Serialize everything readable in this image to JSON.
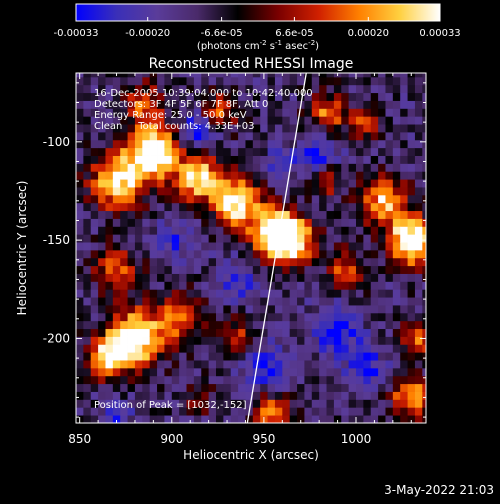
{
  "chart_data": {
    "type": "heatmap",
    "title": "Reconstructed RHESSI Image",
    "xlabel": "Heliocentric X (arcsec)",
    "ylabel": "Heliocentric Y (arcsec)",
    "xlim": [
      848,
      1038
    ],
    "ylim": [
      -243,
      -65
    ],
    "x_ticks": [
      "850",
      "900",
      "950",
      "1000"
    ],
    "x_tick_values": [
      850,
      900,
      950,
      1000
    ],
    "y_ticks": [
      "-100",
      "-150",
      "-200"
    ],
    "y_tick_values": [
      -100,
      -150,
      -200
    ],
    "colorbar": {
      "min": -0.00033,
      "max": 0.00033,
      "tick_labels": [
        "-0.00033",
        "-0.00020",
        "-6.6e-05",
        "6.6e-05",
        "0.00020",
        "0.00033"
      ],
      "tick_values": [
        -0.00033,
        -0.0002,
        -6.6e-05,
        6.6e-05,
        0.0002,
        0.00033
      ],
      "units_text": "(photons cm",
      "units_sup1": "-2",
      "units_mid1": " s",
      "units_sup2": "-1",
      "units_mid2": " asec",
      "units_sup3": "-2",
      "units_end": ")"
    },
    "annotations": [
      "16-Dec-2005 10:39:04.000 to 10:42:40.000",
      "Detectors: 3F 4F 5F 6F 7F 8F, Att 0",
      "Energy Range: 25.0 - 50.0 keV",
      "Clean     Total counts: 4.33E+03"
    ],
    "peak_label": "Position of Peak = [1032,-152]",
    "limb_line": [
      [
        941,
        -243
      ],
      [
        973,
        -65
      ]
    ],
    "grid": false,
    "colors": {
      "background": "#000000",
      "text": "#ffffff",
      "colorbar_stops": [
        "#0000ff",
        "#3a2fb8",
        "#5a3c9a",
        "#4a2a6a",
        "#000000",
        "#7a0000",
        "#d02000",
        "#ff8000",
        "#ffd040",
        "#ffffff"
      ]
    }
  },
  "footer": {
    "timestamp": "3-May-2022 21:03"
  }
}
